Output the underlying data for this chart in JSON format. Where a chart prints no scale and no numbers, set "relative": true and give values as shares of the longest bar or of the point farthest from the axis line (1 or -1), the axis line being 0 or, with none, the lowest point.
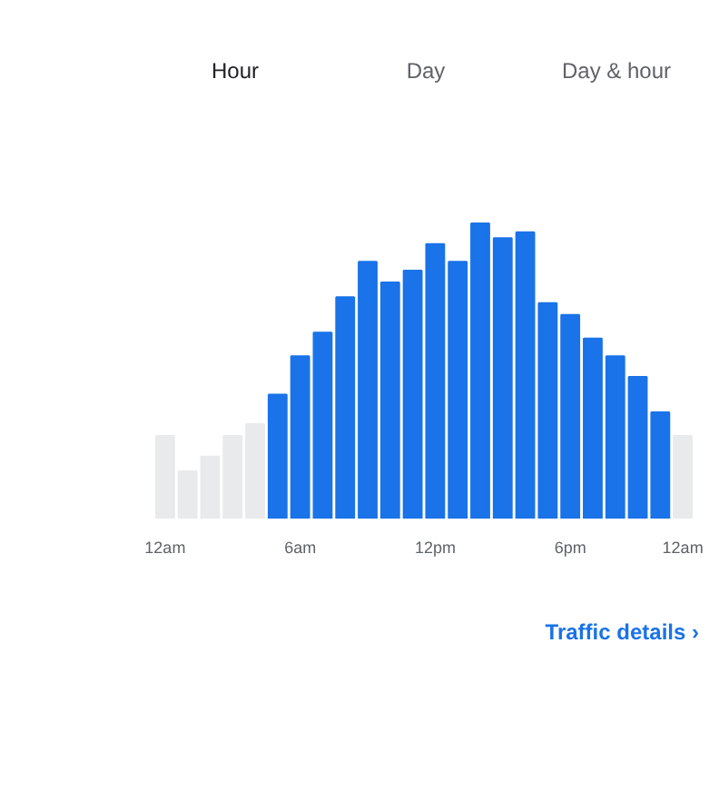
{
  "chart_data": {
    "type": "bar",
    "relative": true,
    "categories": [
      "12am",
      null,
      null,
      null,
      null,
      null,
      "6am",
      null,
      null,
      null,
      null,
      null,
      "12pm",
      null,
      null,
      null,
      null,
      null,
      "6pm",
      null,
      null,
      null,
      null,
      "12am"
    ],
    "values": [
      0.28,
      0.16,
      0.21,
      0.28,
      0.32,
      0.42,
      0.55,
      0.63,
      0.75,
      0.87,
      0.8,
      0.84,
      0.93,
      0.87,
      1,
      0.95,
      0.97,
      0.73,
      0.69,
      0.61,
      0.55,
      0.48,
      0.36,
      0.28
    ],
    "colors": [
      "#e8eaeb",
      "#e8eaeb",
      "#e8eaeb",
      "#e8eaeb",
      "#e8eaeb",
      "#1a73e8",
      "#1a73e8",
      "#1a73e8",
      "#1a73e8",
      "#1a73e8",
      "#1a73e8",
      "#1a73e8",
      "#1a73e8",
      "#1a73e8",
      "#1a73e8",
      "#1a73e8",
      "#1a73e8",
      "#1a73e8",
      "#1a73e8",
      "#1a73e8",
      "#1a73e8",
      "#1a73e8",
      "#1a73e8",
      "#e8eaeb"
    ],
    "annotations": [
      "Hour",
      "Day",
      "Day & hour",
      "Traffic details ›"
    ]
  }
}
